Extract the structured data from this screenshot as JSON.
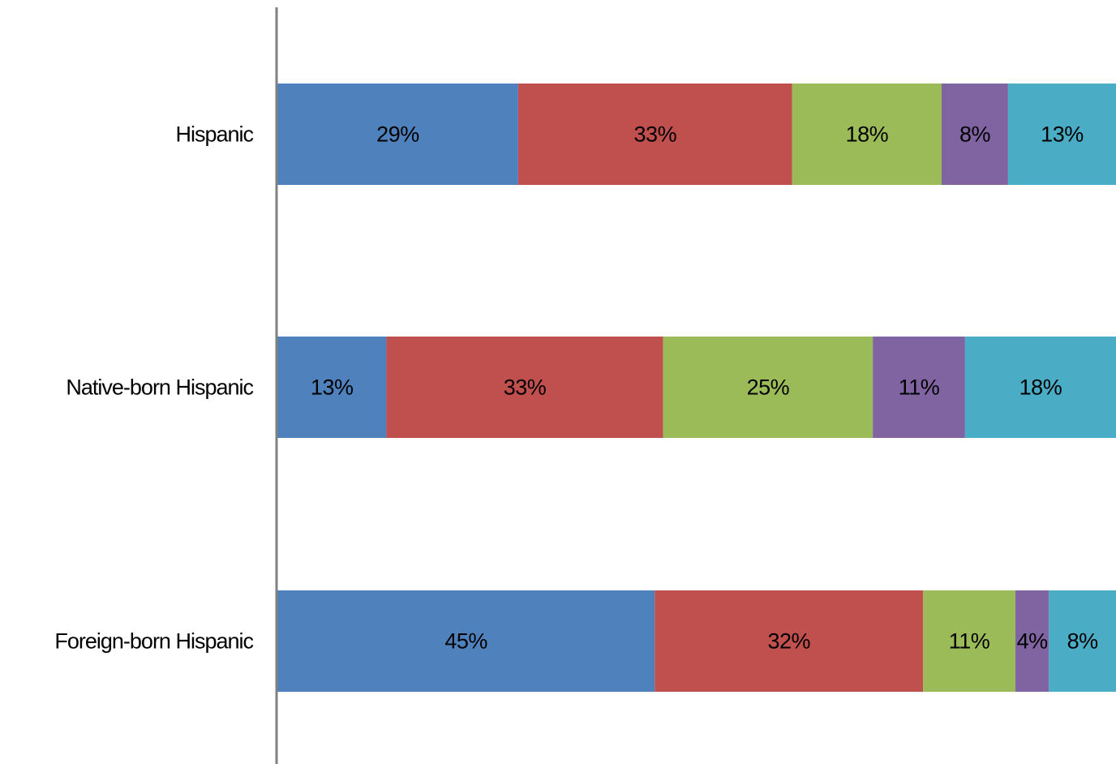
{
  "chart_data": {
    "type": "bar",
    "orientation": "horizontal",
    "stacked": true,
    "percent_stacked": true,
    "title": "",
    "xlabel": "",
    "ylabel": "",
    "categories": [
      "Hispanic",
      "Native-born Hispanic",
      "Foreign-born Hispanic"
    ],
    "series": [
      {
        "color": "#4F81BD",
        "values": [
          29,
          13,
          45
        ],
        "labels": [
          "29%",
          "13%",
          "45%"
        ]
      },
      {
        "color": "#C0504D",
        "values": [
          33,
          33,
          32
        ],
        "labels": [
          "33%",
          "33%",
          "32%"
        ]
      },
      {
        "color": "#9BBB59",
        "values": [
          18,
          25,
          11
        ],
        "labels": [
          "18%",
          "25%",
          "11%"
        ]
      },
      {
        "color": "#8064A2",
        "values": [
          8,
          11,
          4
        ],
        "labels": [
          "8%",
          "11%",
          "4%"
        ]
      },
      {
        "color": "#4BACC6",
        "values": [
          13,
          18,
          8
        ],
        "labels": [
          "13%",
          "18%",
          "8%"
        ]
      }
    ],
    "xlim": [
      0,
      100
    ],
    "grid": false,
    "legend": "none",
    "axis_color": "#808080"
  }
}
